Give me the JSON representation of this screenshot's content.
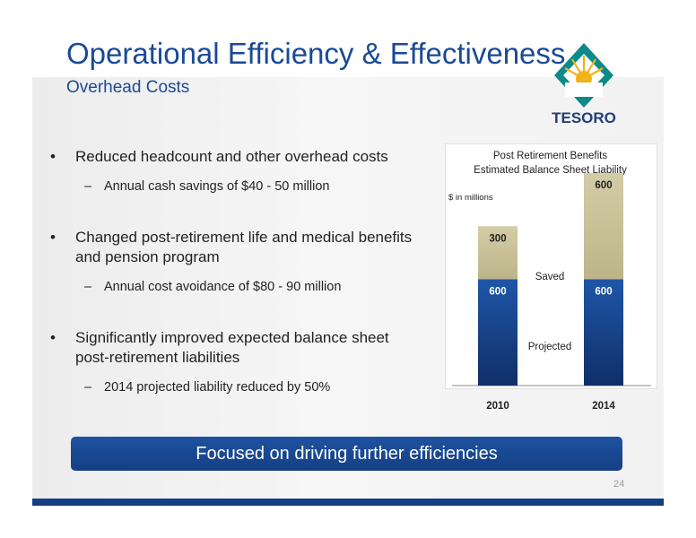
{
  "header": {
    "title": "Operational Efficiency & Effectiveness",
    "subtitle": "Overhead Costs"
  },
  "logo": {
    "text": "TESORO",
    "colors": {
      "teal": "#0d8a8a",
      "gold": "#f2b21b"
    }
  },
  "bullets": [
    {
      "text": "Reduced headcount and other overhead costs",
      "sub": "Annual cash savings of $40 - 50 million"
    },
    {
      "text": "Changed post-retirement life and medical benefits and pension program",
      "sub": "Annual cost avoidance of $80 - 90 million"
    },
    {
      "text": "Significantly improved expected balance sheet post-retirement liabilities",
      "sub": "2014 projected liability reduced by 50%"
    }
  ],
  "chart_data": {
    "type": "bar",
    "stacked": true,
    "title": "Post Retirement Benefits",
    "subtitle": "Estimated Balance Sheet Liability",
    "units": "$ in millions",
    "categories": [
      "2010",
      "2014"
    ],
    "series": [
      {
        "name": "Projected",
        "values": [
          600,
          600
        ],
        "color": "#1a4a96"
      },
      {
        "name": "Saved",
        "values": [
          300,
          600
        ],
        "color": "#c9c29a"
      }
    ],
    "ylim": [
      0,
      1200
    ]
  },
  "banner": {
    "text": "Focused on driving further efficiencies"
  },
  "page_number": "24"
}
